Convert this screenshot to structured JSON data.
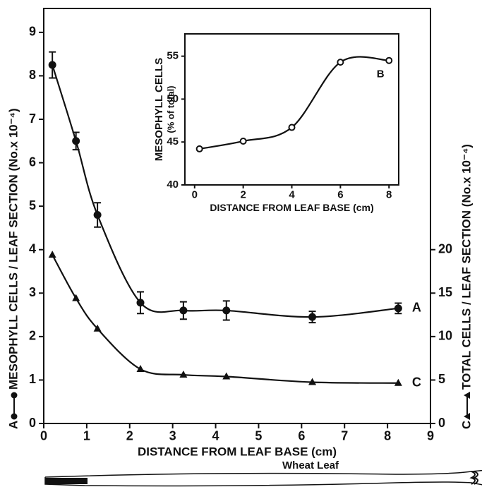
{
  "chart_data": [
    {
      "type": "line",
      "x_label": "DISTANCE FROM LEAF BASE (cm)",
      "y_label": "MESOPHYLL CELLS / LEAF SECTION (No.x 10⁻⁴)",
      "y2_label": "TOTAL CELLS / LEAF SECTION (No.x 10⁻⁴)",
      "x": [
        0.2,
        0.75,
        1.25,
        2.25,
        3.25,
        4.25,
        6.25,
        8.25
      ],
      "series": [
        {
          "name": "A",
          "color": "#111111",
          "marker": "circle",
          "values": [
            8.25,
            6.5,
            4.8,
            2.78,
            2.6,
            2.6,
            2.45,
            2.65
          ],
          "errors": [
            0.3,
            0.2,
            0.28,
            0.25,
            0.2,
            0.22,
            0.13,
            0.12
          ]
        },
        {
          "name": "C",
          "color": "#111111",
          "marker": "triangle",
          "axis": "y2",
          "values": [
            19.4,
            14.4,
            10.9,
            6.25,
            5.6,
            5.4,
            4.75,
            4.65
          ]
        }
      ],
      "xlim": [
        0,
        9
      ],
      "ylim": [
        0,
        9.55
      ],
      "y2lim": [
        0,
        47.75
      ],
      "xticks": [
        0,
        1,
        2,
        3,
        4,
        5,
        6,
        7,
        8,
        9
      ],
      "yticks": [
        0,
        1,
        2,
        3,
        4,
        5,
        6,
        7,
        8,
        9
      ],
      "y2ticks": [
        0,
        5,
        10,
        15,
        20
      ],
      "annotation": "Wheat Leaf"
    },
    {
      "type": "line",
      "x_label": "DISTANCE FROM LEAF BASE (cm)",
      "y_label": [
        "MESOPHYLL CELLS",
        "(% of total)"
      ],
      "x": [
        0.2,
        2,
        4,
        6,
        8
      ],
      "series": [
        {
          "name": "B",
          "color": "#111111",
          "marker": "open-circle",
          "values": [
            44.2,
            45.1,
            46.7,
            54.3,
            54.5
          ]
        }
      ],
      "xlim": [
        -0.4,
        8.4
      ],
      "ylim": [
        40,
        57.6
      ],
      "xticks": [
        0,
        2,
        4,
        6,
        8
      ],
      "yticks": [
        40,
        45,
        50,
        55
      ]
    }
  ]
}
